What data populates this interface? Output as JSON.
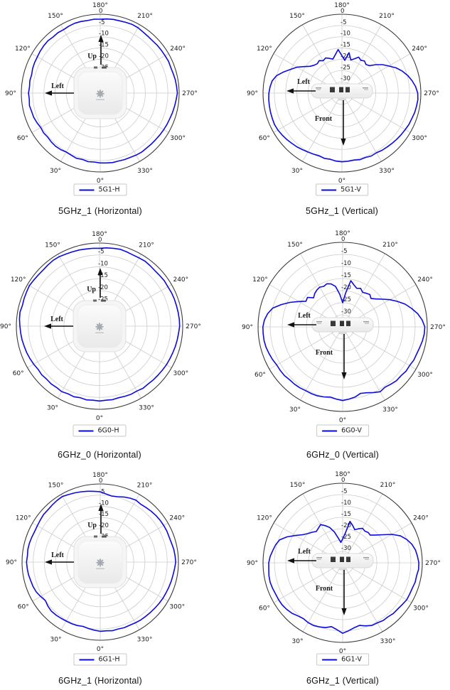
{
  "figure": {
    "description_labels": {
      "up": "Up",
      "left": "Left",
      "front": "Front"
    }
  },
  "polar_axis": {
    "angle_ticks_deg": [
      0,
      30,
      60,
      90,
      120,
      150,
      180,
      210,
      240,
      270,
      300,
      330
    ],
    "angle_tick_labels": [
      "0°",
      "30°",
      "60°",
      "90°",
      "120°",
      "150°",
      "180°",
      "210°",
      "240°",
      "270°",
      "300°",
      "330°"
    ],
    "zero_location": "bottom",
    "direction": "clockwise",
    "radial_ticks_db": [
      0,
      -5,
      -10,
      -15,
      -20,
      -25,
      -30
    ],
    "radial_tick_labels": [
      "0",
      "-5",
      "-10",
      "-15",
      "-20",
      "-25",
      "-30"
    ],
    "rmax_db": 0,
    "rmin_db": -35,
    "grid": true,
    "legend_position": "bottom",
    "colors": {
      "curve": "#0b0be0",
      "grid": "#cccccc",
      "outer_circle": "#3a3a3a",
      "labels": "#1a1a1a",
      "annotation": "#111111"
    }
  },
  "chart_data": [
    {
      "type": "polar-line",
      "id": "5g1-h",
      "title": "5GHz_1 (Horizontal)",
      "center_image": "access-point-top-view",
      "annotations": [
        {
          "label": "Up",
          "direction": "up"
        },
        {
          "label": "Left",
          "direction": "left"
        }
      ],
      "series": [
        {
          "name": "5G1-H",
          "color": "#0b0be0",
          "angle_start_deg": 0,
          "angle_step_deg": 5,
          "values_db": [
            -4.0,
            -4.3,
            -4.1,
            -4.5,
            -4.2,
            -4.6,
            -4.8,
            -4.4,
            -4.2,
            -4.3,
            -4.6,
            -4.3,
            -4.5,
            -4.0,
            -3.6,
            -3.5,
            -3.1,
            -3.4,
            -3.2,
            -3.5,
            -3.3,
            -3.5,
            -3.1,
            -2.9,
            -2.8,
            -2.5,
            -2.3,
            -2.2,
            -2.5,
            -2.3,
            -2.5,
            -2.2,
            -2.0,
            -2.1,
            -2.3,
            -2.1,
            -2.2,
            -2.0,
            -1.8,
            -1.8,
            -1.6,
            -1.4,
            -1.5,
            -1.9,
            -2.1,
            -2.2,
            -2.0,
            -1.9,
            -1.8,
            -1.6,
            -1.7,
            -1.5,
            -1.2,
            -1.0,
            -0.8,
            -1.2,
            -1.5,
            -1.8,
            -2.1,
            -2.3,
            -2.5,
            -2.7,
            -2.9,
            -3.0,
            -3.1,
            -3.0,
            -3.2,
            -3.5,
            -3.6,
            -3.8,
            -3.7,
            -3.9
          ]
        }
      ]
    },
    {
      "type": "polar-line",
      "id": "5g1-v",
      "title": "5GHz_1 (Vertical)",
      "center_image": "access-point-side-view",
      "annotations": [
        {
          "label": "Left",
          "direction": "left"
        },
        {
          "label": "Front",
          "direction": "front"
        }
      ],
      "series": [
        {
          "name": "5G1-V",
          "color": "#0b0be0",
          "angle_start_deg": 0,
          "angle_step_deg": 5,
          "values_db": [
            -4.5,
            -4.7,
            -5.2,
            -5.0,
            -5.4,
            -5.1,
            -4.8,
            -4.4,
            -3.9,
            -3.5,
            -3.0,
            -2.6,
            -2.2,
            -2.0,
            -2.1,
            -2.2,
            -2.3,
            -2.4,
            -2.6,
            -3.0,
            -3.6,
            -5.0,
            -7.5,
            -10.0,
            -12.0,
            -14.5,
            -16.5,
            -17.5,
            -18.0,
            -17.4,
            -18.4,
            -17.8,
            -18.6,
            -19.4,
            -17.8,
            -15.6,
            -18.4,
            -20.4,
            -16.8,
            -19.8,
            -18.8,
            -17.4,
            -18.2,
            -17.6,
            -18.4,
            -17.8,
            -15.4,
            -13.0,
            -11.0,
            -8.5,
            -6.5,
            -4.8,
            -3.4,
            -2.2,
            -1.4,
            -1.2,
            -1.4,
            -1.6,
            -2.0,
            -2.2,
            -2.6,
            -2.9,
            -3.2,
            -3.5,
            -3.8,
            -4.0,
            -4.4,
            -4.2,
            -4.6,
            -4.4,
            -4.8,
            -4.6
          ]
        }
      ]
    },
    {
      "type": "polar-line",
      "id": "6g0-h",
      "title": "6GHz_0 (Horizontal)",
      "center_image": "access-point-top-view",
      "annotations": [
        {
          "label": "Up",
          "direction": "up"
        },
        {
          "label": "Left",
          "direction": "left"
        }
      ],
      "series": [
        {
          "name": "6G0-H",
          "color": "#0b0be0",
          "angle_start_deg": 0,
          "angle_step_deg": 5,
          "values_db": [
            -3.5,
            -3.7,
            -3.5,
            -3.8,
            -3.4,
            -3.6,
            -3.2,
            -3.5,
            -3.3,
            -3.5,
            -3.2,
            -3.4,
            -3.0,
            -2.7,
            -2.4,
            -2.2,
            -1.9,
            -1.7,
            -1.5,
            -1.2,
            -1.0,
            -1.4,
            -1.2,
            -1.1,
            -0.9,
            -1.2,
            -1.4,
            -1.5,
            -1.3,
            -1.1,
            -1.2,
            -1.5,
            -1.7,
            -1.8,
            -2.0,
            -2.1,
            -2.2,
            -1.9,
            -1.7,
            -1.5,
            -1.7,
            -1.9,
            -1.8,
            -1.6,
            -1.8,
            -2.0,
            -1.9,
            -1.7,
            -1.8,
            -1.6,
            -1.5,
            -1.5,
            -1.4,
            -1.3,
            -1.3,
            -1.6,
            -1.8,
            -2.0,
            -2.2,
            -2.4,
            -2.5,
            -2.7,
            -2.9,
            -3.0,
            -3.2,
            -3.1,
            -3.5,
            -3.4,
            -3.6,
            -3.8,
            -3.6,
            -3.7
          ]
        }
      ]
    },
    {
      "type": "polar-line",
      "id": "6g0-v",
      "title": "6GHz_0 (Vertical)",
      "center_image": "access-point-side-view",
      "annotations": [
        {
          "label": "Left",
          "direction": "left"
        },
        {
          "label": "Front",
          "direction": "front"
        }
      ],
      "series": [
        {
          "name": "6G0-V",
          "color": "#0b0be0",
          "angle_start_deg": 0,
          "angle_step_deg": 5,
          "values_db": [
            -4.5,
            -5.0,
            -5.5,
            -5.0,
            -4.6,
            -4.5,
            -4.5,
            -4.2,
            -4.0,
            -4.0,
            -3.6,
            -3.5,
            -3.5,
            -3.0,
            -2.6,
            -2.2,
            -2.0,
            -2.0,
            -2.0,
            -2.5,
            -3.5,
            -5.0,
            -8.0,
            -11.0,
            -14.0,
            -16.5,
            -16.0,
            -18.0,
            -17.0,
            -16.4,
            -16.0,
            -16.5,
            -16.0,
            -16.6,
            -18.0,
            -21.5,
            -25.0,
            -21.0,
            -15.6,
            -17.0,
            -18.0,
            -17.4,
            -18.5,
            -18.0,
            -17.5,
            -18.4,
            -17.0,
            -15.0,
            -12.5,
            -10.0,
            -7.5,
            -5.5,
            -3.5,
            -2.0,
            -1.0,
            -1.1,
            -1.5,
            -2.0,
            -2.4,
            -2.5,
            -3.0,
            -3.0,
            -3.5,
            -3.5,
            -4.0,
            -4.5,
            -4.0,
            -5.0,
            -6.0,
            -6.5,
            -5.5,
            -5.0
          ]
        }
      ]
    },
    {
      "type": "polar-line",
      "id": "6g1-h",
      "title": "6GHz_1 (Horizontal)",
      "center_image": "access-point-top-view",
      "annotations": [
        {
          "label": "Up",
          "direction": "up"
        },
        {
          "label": "Left",
          "direction": "left"
        }
      ],
      "series": [
        {
          "name": "6G1-H",
          "color": "#0b0be0",
          "angle_start_deg": 0,
          "angle_step_deg": 5,
          "values_db": [
            -4.0,
            -4.4,
            -4.8,
            -5.2,
            -4.8,
            -4.6,
            -4.5,
            -4.3,
            -4.1,
            -4.0,
            -4.4,
            -5.0,
            -4.2,
            -3.4,
            -3.0,
            -2.8,
            -2.4,
            -2.2,
            -2.0,
            -2.3,
            -2.1,
            -2.2,
            -2.4,
            -2.6,
            -2.5,
            -2.2,
            -1.9,
            -1.9,
            -1.6,
            -1.3,
            -1.1,
            -1.6,
            -2.0,
            -2.4,
            -2.8,
            -3.2,
            -3.5,
            -4.4,
            -5.0,
            -4.7,
            -4.0,
            -3.4,
            -3.0,
            -3.4,
            -3.1,
            -2.8,
            -2.5,
            -2.3,
            -2.2,
            -2.1,
            -2.2,
            -2.0,
            -1.6,
            -1.4,
            -1.2,
            -1.6,
            -1.9,
            -2.1,
            -2.3,
            -2.5,
            -2.6,
            -2.8,
            -3.0,
            -3.2,
            -3.3,
            -3.4,
            -3.6,
            -3.8,
            -3.7,
            -4.0,
            -3.8,
            -4.1
          ]
        }
      ]
    },
    {
      "type": "polar-line",
      "id": "6g1-v",
      "title": "6GHz_1 (Vertical)",
      "center_image": "access-point-side-view",
      "annotations": [
        {
          "label": "Left",
          "direction": "left"
        },
        {
          "label": "Front",
          "direction": "front"
        }
      ],
      "series": [
        {
          "name": "6G1-V",
          "color": "#0b0be0",
          "angle_start_deg": 0,
          "angle_step_deg": 5,
          "values_db": [
            -4.0,
            -5.5,
            -6.5,
            -5.5,
            -5.0,
            -4.6,
            -4.6,
            -5.0,
            -4.5,
            -3.6,
            -3.0,
            -2.6,
            -2.5,
            -2.5,
            -2.2,
            -2.0,
            -2.1,
            -2.4,
            -2.5,
            -3.0,
            -3.8,
            -4.5,
            -5.5,
            -8.0,
            -11.0,
            -13.5,
            -15.0,
            -16.0,
            -17.0,
            -16.4,
            -15.6,
            -17.0,
            -18.5,
            -21.0,
            -24.0,
            -26.0,
            -24.5,
            -22.0,
            -16.5,
            -18.0,
            -19.5,
            -18.5,
            -17.5,
            -18.0,
            -17.6,
            -17.8,
            -16.0,
            -13.5,
            -10.0,
            -7.0,
            -5.0,
            -3.5,
            -2.5,
            -2.0,
            -1.5,
            -1.5,
            -2.0,
            -2.0,
            -2.4,
            -2.5,
            -2.5,
            -3.0,
            -3.4,
            -3.5,
            -4.0,
            -4.0,
            -4.5,
            -4.6,
            -5.5,
            -6.5,
            -6.0,
            -5.0
          ]
        }
      ]
    }
  ]
}
